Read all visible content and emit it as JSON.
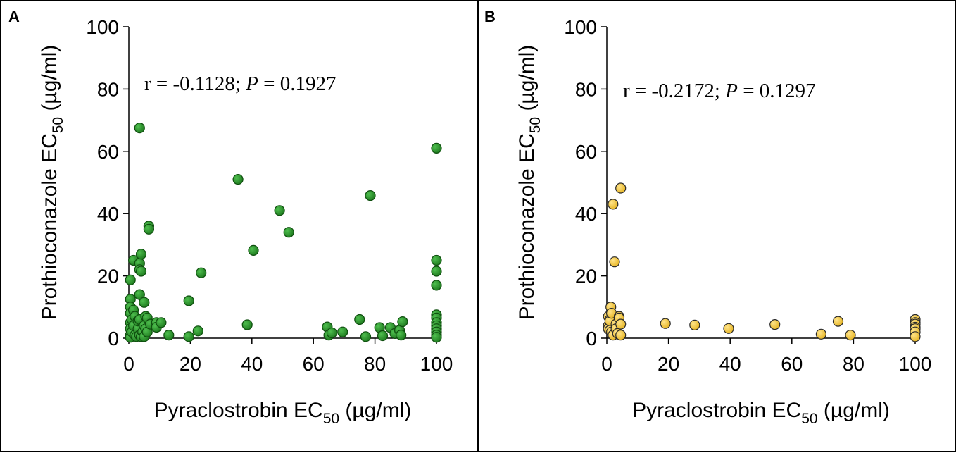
{
  "chart_data": [
    {
      "panel": "A",
      "type": "scatter",
      "xlabel": {
        "main": "Pyraclostrobin EC",
        "sub": "50",
        "unit": " (µg/ml)"
      },
      "ylabel": {
        "main": "Prothioconazole EC",
        "sub": "50",
        "unit": " (µg/ml)"
      },
      "xlim": [
        0,
        100
      ],
      "ylim": [
        0,
        100
      ],
      "xticks": [
        0,
        20,
        40,
        60,
        80,
        100
      ],
      "yticks": [
        0,
        20,
        40,
        60,
        80,
        100
      ],
      "annotation": {
        "pre": "r = -0.1128; ",
        "italic": "P",
        "post": " = 0.1927"
      },
      "marker_color": "#1e7a1e",
      "marker_edge": "#0f4f0f",
      "points": [
        [
          0.5,
          18.7
        ],
        [
          0.5,
          12.5
        ],
        [
          0.5,
          10
        ],
        [
          0.5,
          8
        ],
        [
          0.5,
          5
        ],
        [
          0.5,
          3
        ],
        [
          0.5,
          1
        ],
        [
          0.5,
          0.3
        ],
        [
          1,
          6
        ],
        [
          1,
          2
        ],
        [
          1.5,
          25
        ],
        [
          1.5,
          9
        ],
        [
          1.5,
          4
        ],
        [
          2,
          7
        ],
        [
          2,
          1
        ],
        [
          2.5,
          0.5
        ],
        [
          3,
          3
        ],
        [
          3,
          5.5
        ],
        [
          3.5,
          67.5
        ],
        [
          3.5,
          14
        ],
        [
          3.5,
          24
        ],
        [
          3.5,
          22
        ],
        [
          3.5,
          6
        ],
        [
          3.5,
          1
        ],
        [
          4,
          27
        ],
        [
          4,
          21.5
        ],
        [
          4,
          0.5
        ],
        [
          4.5,
          2
        ],
        [
          5,
          11.5
        ],
        [
          5,
          4
        ],
        [
          5,
          0.5
        ],
        [
          5.5,
          7
        ],
        [
          5.5,
          3
        ],
        [
          6,
          6.5
        ],
        [
          6,
          2
        ],
        [
          6.5,
          36
        ],
        [
          6.5,
          35
        ],
        [
          7,
          4.5
        ],
        [
          9,
          5
        ],
        [
          9,
          3.5
        ],
        [
          10.5,
          5
        ],
        [
          13,
          1
        ],
        [
          19.5,
          12
        ],
        [
          19.5,
          0.5
        ],
        [
          22.5,
          2.3
        ],
        [
          23.5,
          21
        ],
        [
          35.5,
          51
        ],
        [
          38.5,
          4.3
        ],
        [
          40.5,
          28.2
        ],
        [
          49,
          41
        ],
        [
          52,
          34
        ],
        [
          64.5,
          3.6
        ],
        [
          65,
          1
        ],
        [
          66,
          1.7
        ],
        [
          69.5,
          2
        ],
        [
          75,
          6
        ],
        [
          77,
          0.5
        ],
        [
          78.5,
          45.8
        ],
        [
          81.5,
          3.4
        ],
        [
          82.5,
          0.8
        ],
        [
          85,
          3.4
        ],
        [
          86.5,
          1.5
        ],
        [
          88,
          2.5
        ],
        [
          88.5,
          1
        ],
        [
          89,
          5.3
        ],
        [
          100,
          61
        ],
        [
          100,
          25
        ],
        [
          100,
          21.5
        ],
        [
          100,
          17
        ],
        [
          100,
          7.5
        ],
        [
          100,
          6.5
        ],
        [
          100,
          5
        ],
        [
          100,
          4
        ],
        [
          100,
          3
        ],
        [
          100,
          2
        ],
        [
          100,
          1
        ],
        [
          100,
          0.3
        ]
      ]
    },
    {
      "panel": "B",
      "type": "scatter",
      "xlabel": {
        "main": "Pyraclostrobin EC",
        "sub": "50",
        "unit": " (µg/ml)"
      },
      "ylabel": {
        "main": "Prothioconazole EC",
        "sub": "50",
        "unit": " (µg/ml)"
      },
      "xlim": [
        0,
        100
      ],
      "ylim": [
        0,
        100
      ],
      "xticks": [
        0,
        20,
        40,
        60,
        80,
        100
      ],
      "yticks": [
        0,
        20,
        40,
        60,
        80,
        100
      ],
      "annotation": {
        "pre": "r = -0.2172; ",
        "italic": "P",
        "post": " = 0.1297"
      },
      "marker_color": "#e6b422",
      "marker_edge": "#2a2a2a",
      "points": [
        [
          0.5,
          7
        ],
        [
          0.5,
          4
        ],
        [
          0.5,
          3
        ],
        [
          1,
          6
        ],
        [
          1,
          5.5
        ],
        [
          1,
          2.5
        ],
        [
          1.3,
          10
        ],
        [
          1.5,
          8
        ],
        [
          1.5,
          2
        ],
        [
          2,
          43
        ],
        [
          2,
          1
        ],
        [
          2.5,
          24.5
        ],
        [
          3,
          4.5
        ],
        [
          3,
          3
        ],
        [
          3.5,
          1.5
        ],
        [
          4,
          7
        ],
        [
          4,
          6.5
        ],
        [
          4.5,
          48.2
        ],
        [
          4.5,
          4.5
        ],
        [
          4.5,
          1
        ],
        [
          19,
          4.7
        ],
        [
          28.5,
          4.2
        ],
        [
          39.5,
          3.1
        ],
        [
          54.5,
          4.4
        ],
        [
          69.5,
          1.3
        ],
        [
          75,
          5.4
        ],
        [
          79,
          1
        ],
        [
          100,
          6
        ],
        [
          100,
          5
        ],
        [
          100,
          4.5
        ],
        [
          100,
          3.5
        ],
        [
          100,
          3
        ],
        [
          100,
          2
        ],
        [
          100,
          0.5
        ]
      ]
    }
  ]
}
